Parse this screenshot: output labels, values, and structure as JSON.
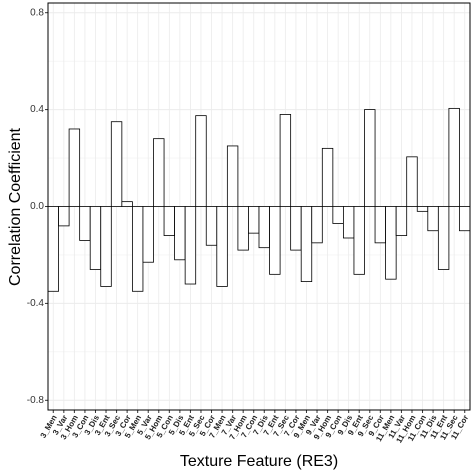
{
  "chart_data": {
    "type": "bar",
    "x_label": "Texture Feature (RE3)",
    "y_label": "Correlation Coefficient",
    "categories": [
      "3_Men",
      "3_Var",
      "3_Hom",
      "3_Con",
      "3_Dis",
      "3_Ent",
      "3_Sec",
      "3_Cor",
      "5_Men",
      "5_Var",
      "5_Hom",
      "5_Con",
      "5_Dis",
      "5_Ent",
      "5_Sec",
      "5_Cor",
      "7_Men",
      "7_Var",
      "7_Hom",
      "7_Con",
      "7_Dis",
      "7_Ent",
      "7_Sec",
      "7_Cor",
      "9_Men",
      "9_Var",
      "9_Hom",
      "9_Con",
      "9_Dis",
      "9_Ent",
      "9_Sec",
      "9_Cor",
      "11_Men",
      "11_Var",
      "11_Hom",
      "11_Con",
      "11_Dis",
      "11_Ent",
      "11_Sec",
      "11_Cor"
    ],
    "values": [
      -0.35,
      -0.08,
      0.32,
      -0.14,
      -0.26,
      -0.33,
      0.35,
      0.02,
      -0.35,
      -0.23,
      0.28,
      -0.12,
      -0.22,
      -0.32,
      0.375,
      -0.16,
      -0.33,
      0.25,
      -0.18,
      -0.11,
      -0.17,
      -0.28,
      0.38,
      -0.18,
      -0.31,
      -0.15,
      0.24,
      -0.07,
      -0.13,
      -0.28,
      0.4,
      -0.15,
      -0.3,
      -0.12,
      0.205,
      -0.02,
      -0.1,
      -0.26,
      0.405,
      -0.1
    ],
    "color": "#ffffff",
    "edgecolor": "#000000",
    "ylim": [
      -0.84,
      0.84
    ],
    "yticks": [
      -0.8,
      -0.4,
      {
        "value": 0,
        "label": "0.0"
      },
      0.4,
      0.8
    ],
    "grid": true
  }
}
